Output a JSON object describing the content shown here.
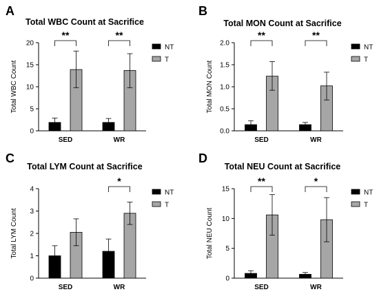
{
  "colors": {
    "NT": "#000000",
    "T": "#a6a6a6",
    "axis": "#000000"
  },
  "chart_data": [
    {
      "letter": "A",
      "type": "bar",
      "title": "Total WBC Count at Sacrifice",
      "ylabel": "Total WBC Count",
      "categories": [
        "SED",
        "WR"
      ],
      "ylim": [
        0,
        20
      ],
      "yticks": [
        "0",
        "5",
        "10",
        "15",
        "20"
      ],
      "series": [
        {
          "name": "NT",
          "values": [
            1.9,
            1.9
          ],
          "err_low": [
            1.1,
            1.1
          ],
          "err_high": [
            2.9,
            2.8
          ]
        },
        {
          "name": "T",
          "values": [
            13.9,
            13.7
          ],
          "err_low": [
            9.8,
            9.8
          ],
          "err_high": [
            18.1,
            17.5
          ]
        }
      ],
      "significance": [
        "**",
        "**"
      ]
    },
    {
      "letter": "B",
      "type": "bar",
      "title": "Total MON Count at Sacrifice",
      "ylabel": "Total MON Count",
      "categories": [
        "SED",
        "WR"
      ],
      "ylim": [
        0,
        2.0
      ],
      "yticks": [
        "0.0",
        "0.5",
        "1.0",
        "1.5",
        "2.0"
      ],
      "series": [
        {
          "name": "NT",
          "values": [
            0.14,
            0.14
          ],
          "err_low": [
            0.08,
            0.1
          ],
          "err_high": [
            0.23,
            0.19
          ]
        },
        {
          "name": "T",
          "values": [
            1.24,
            1.02
          ],
          "err_low": [
            0.92,
            0.7
          ],
          "err_high": [
            1.57,
            1.33
          ]
        }
      ],
      "significance": [
        "**",
        "**"
      ]
    },
    {
      "letter": "C",
      "type": "bar",
      "title": "Total LYM Count at Sacrifice",
      "ylabel": "Total LYM Count",
      "categories": [
        "SED",
        "WR"
      ],
      "ylim": [
        0,
        4
      ],
      "yticks": [
        "0",
        "1",
        "2",
        "3",
        "4"
      ],
      "series": [
        {
          "name": "NT",
          "values": [
            1.0,
            1.2
          ],
          "err_low": [
            0.5,
            0.7
          ],
          "err_high": [
            1.45,
            1.75
          ]
        },
        {
          "name": "T",
          "values": [
            2.05,
            2.9
          ],
          "err_low": [
            1.45,
            2.4
          ],
          "err_high": [
            2.65,
            3.4
          ]
        }
      ],
      "significance": [
        "",
        "*"
      ]
    },
    {
      "letter": "D",
      "type": "bar",
      "title": "Total NEU Count at Sacrifice",
      "ylabel": "Total NEU Count",
      "categories": [
        "SED",
        "WR"
      ],
      "ylim": [
        0,
        15
      ],
      "yticks": [
        "0",
        "5",
        "10",
        "15"
      ],
      "series": [
        {
          "name": "NT",
          "values": [
            0.8,
            0.65
          ],
          "err_low": [
            0.45,
            0.4
          ],
          "err_high": [
            1.25,
            0.95
          ]
        },
        {
          "name": "T",
          "values": [
            10.6,
            9.8
          ],
          "err_low": [
            7.2,
            6.1
          ],
          "err_high": [
            14.0,
            13.5
          ]
        }
      ],
      "significance": [
        "**",
        "*"
      ]
    }
  ]
}
